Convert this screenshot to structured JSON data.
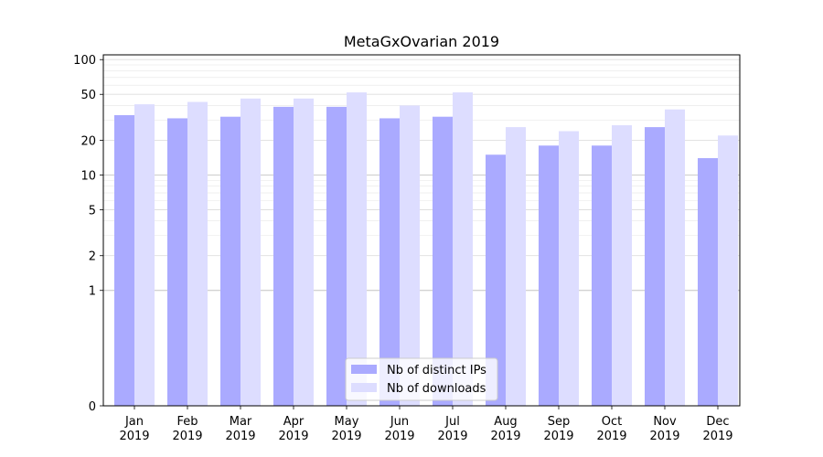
{
  "chart_data": {
    "type": "bar",
    "title": "MetaGxOvarian 2019",
    "xlabel": "",
    "ylabel": "",
    "y_scale": "symlog",
    "ylim": [
      0,
      110
    ],
    "y_ticks": [
      0,
      1,
      2,
      5,
      10,
      20,
      50,
      100
    ],
    "grid": "horizontal",
    "legend_position": "bottom-center",
    "categories": [
      [
        "Jan",
        "2019"
      ],
      [
        "Feb",
        "2019"
      ],
      [
        "Mar",
        "2019"
      ],
      [
        "Apr",
        "2019"
      ],
      [
        "May",
        "2019"
      ],
      [
        "Jun",
        "2019"
      ],
      [
        "Jul",
        "2019"
      ],
      [
        "Aug",
        "2019"
      ],
      [
        "Sep",
        "2019"
      ],
      [
        "Oct",
        "2019"
      ],
      [
        "Nov",
        "2019"
      ],
      [
        "Dec",
        "2019"
      ]
    ],
    "series": [
      {
        "name": "Nb of distinct IPs",
        "color": "#aaaaff",
        "values": [
          33,
          31,
          32,
          39,
          39,
          31,
          32,
          15,
          18,
          18,
          26,
          14
        ]
      },
      {
        "name": "Nb of downloads",
        "color": "#ddddff",
        "values": [
          41,
          43,
          46,
          46,
          52,
          40,
          52,
          26,
          24,
          27,
          37,
          22
        ]
      }
    ]
  }
}
